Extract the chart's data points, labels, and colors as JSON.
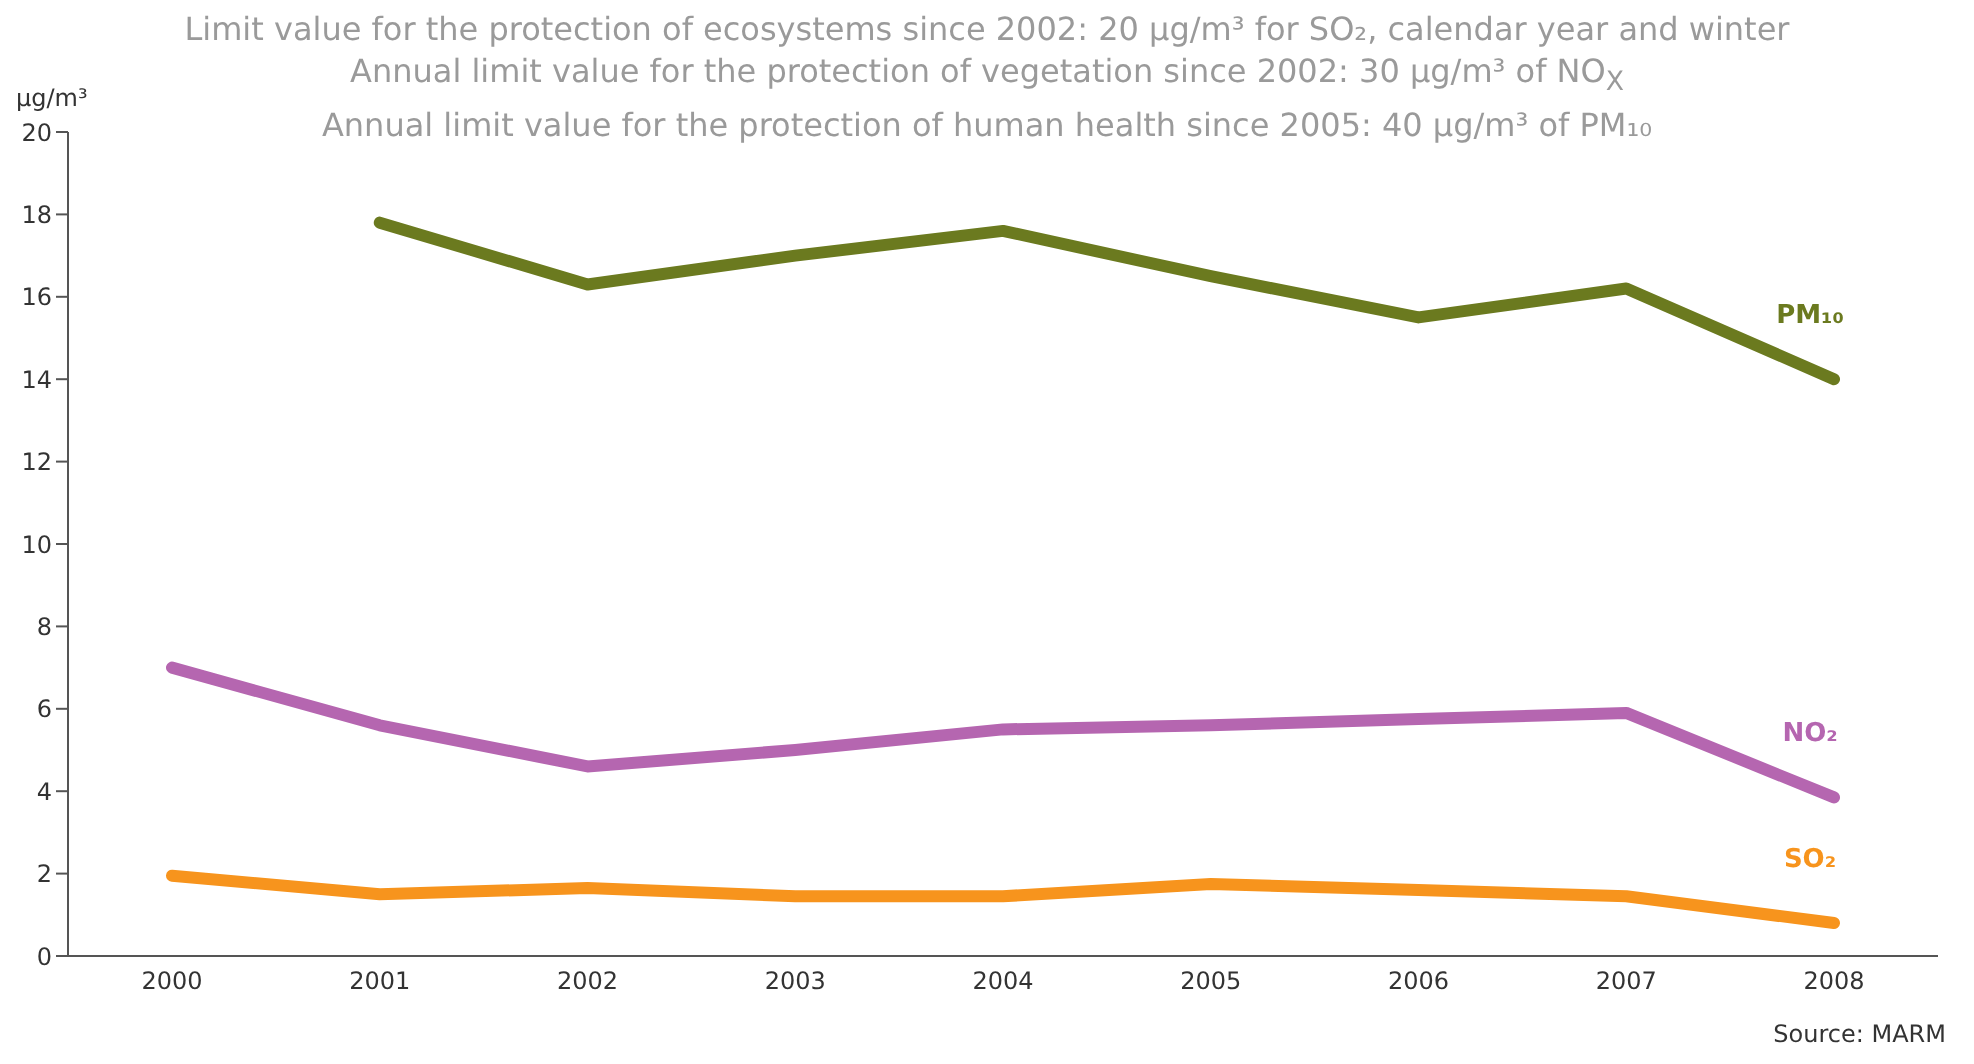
{
  "chart_data": {
    "type": "line",
    "title": "Limit value for the protection of ecosystems since 2002: 20 µg/m³ for SO₂, calendar year and winter\nAnnual limit value for the protection of vegetation since 2002: 30 µg/m³ of NO$_{X}$\nAnnual limit value for the protection of human health since 2005: 40 µg/m³ of PM₁₀",
    "ylabel": "µg/m³",
    "annotations": [
      "Source: MARM"
    ],
    "categories": [
      "2000",
      "2001",
      "2002",
      "2003",
      "2004",
      "2005",
      "2006",
      "2007",
      "2008"
    ],
    "series": [
      {
        "name": "PM₁₀",
        "color": "#6b7a1f",
        "values": [
          null,
          17.8,
          16.3,
          17.0,
          17.6,
          16.5,
          15.5,
          16.2,
          14.0
        ]
      },
      {
        "name": "NO₂",
        "color": "#b566b0",
        "values": [
          7.0,
          5.6,
          4.6,
          5.0,
          5.5,
          5.6,
          5.75,
          5.9,
          3.85
        ]
      },
      {
        "name": "SO₂",
        "color": "#f7941d",
        "values": [
          1.95,
          1.5,
          1.65,
          1.45,
          1.45,
          1.75,
          1.6,
          1.45,
          0.8
        ]
      }
    ],
    "ylim": [
      0,
      20
    ],
    "yticks": [
      0,
      2,
      4,
      6,
      8,
      10,
      12,
      14,
      16,
      18,
      20
    ],
    "grid": false,
    "legend": false,
    "marker": "none",
    "line_style": "solid"
  }
}
